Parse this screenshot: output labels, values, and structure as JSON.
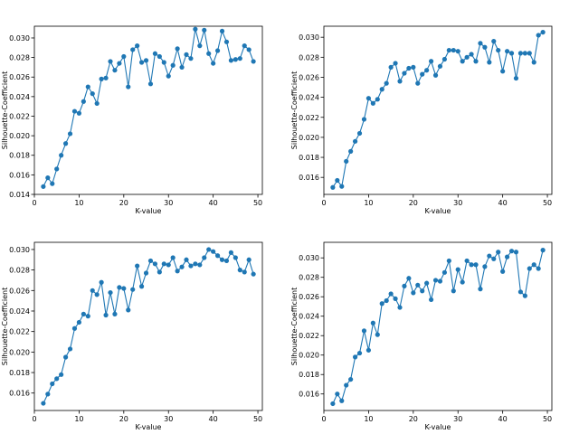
{
  "chart_data": [
    {
      "type": "line",
      "xlabel": "K-value",
      "ylabel": "Silhouette-Coefficient",
      "xlim": [
        0,
        51
      ],
      "ylim": [
        0.014,
        0.0312
      ],
      "xticks": [
        0,
        10,
        20,
        30,
        40,
        50
      ],
      "yticks": [
        0.014,
        0.016,
        0.018,
        0.02,
        0.022,
        0.024,
        0.026,
        0.028,
        0.03
      ],
      "color": "#1f77b4",
      "x": [
        2,
        3,
        4,
        5,
        6,
        7,
        8,
        9,
        10,
        11,
        12,
        13,
        14,
        15,
        16,
        17,
        18,
        19,
        20,
        21,
        22,
        23,
        24,
        25,
        26,
        27,
        28,
        29,
        30,
        31,
        32,
        33,
        34,
        35,
        36,
        37,
        38,
        39,
        40,
        41,
        42,
        43,
        44,
        45,
        46,
        47,
        48,
        49
      ],
      "y": [
        0.0148,
        0.0157,
        0.0151,
        0.0166,
        0.018,
        0.0192,
        0.0202,
        0.0225,
        0.0223,
        0.0235,
        0.025,
        0.0243,
        0.0233,
        0.0258,
        0.0259,
        0.0276,
        0.0267,
        0.0274,
        0.0281,
        0.025,
        0.0288,
        0.0292,
        0.0275,
        0.0277,
        0.0253,
        0.0284,
        0.0281,
        0.0275,
        0.0261,
        0.0272,
        0.0289,
        0.027,
        0.0283,
        0.0279,
        0.0309,
        0.0292,
        0.0308,
        0.0284,
        0.0274,
        0.0287,
        0.0307,
        0.0296,
        0.0277,
        0.0278,
        0.0279,
        0.0292,
        0.0288,
        0.0276
      ]
    },
    {
      "type": "line",
      "xlabel": "K-value",
      "ylabel": "Silhouette-Coefficient",
      "xlim": [
        0,
        51
      ],
      "ylim": [
        0.0143,
        0.0311
      ],
      "xticks": [
        0,
        10,
        20,
        30,
        40,
        50
      ],
      "yticks": [
        0.016,
        0.018,
        0.02,
        0.022,
        0.024,
        0.026,
        0.028,
        0.03
      ],
      "color": "#1f77b4",
      "x": [
        2,
        3,
        4,
        5,
        6,
        7,
        8,
        9,
        10,
        11,
        12,
        13,
        14,
        15,
        16,
        17,
        18,
        19,
        20,
        21,
        22,
        23,
        24,
        25,
        26,
        27,
        28,
        29,
        30,
        31,
        32,
        33,
        34,
        35,
        36,
        37,
        38,
        39,
        40,
        41,
        42,
        43,
        44,
        45,
        46,
        47,
        48,
        49
      ],
      "y": [
        0.015,
        0.0157,
        0.0151,
        0.0176,
        0.0186,
        0.0196,
        0.0204,
        0.0218,
        0.0239,
        0.0234,
        0.0238,
        0.0248,
        0.0254,
        0.027,
        0.0274,
        0.0256,
        0.0264,
        0.0269,
        0.027,
        0.0254,
        0.0263,
        0.0267,
        0.0276,
        0.0262,
        0.0271,
        0.0278,
        0.0287,
        0.0287,
        0.0286,
        0.0276,
        0.028,
        0.0283,
        0.0276,
        0.0294,
        0.029,
        0.0275,
        0.0296,
        0.0287,
        0.0266,
        0.0286,
        0.0284,
        0.0259,
        0.0284,
        0.0284,
        0.0284,
        0.0275,
        0.0302,
        0.0305
      ]
    },
    {
      "type": "line",
      "xlabel": "K-value",
      "ylabel": "Silhouette-Coefficient",
      "xlim": [
        0,
        51
      ],
      "ylim": [
        0.0143,
        0.0307
      ],
      "xticks": [
        0,
        10,
        20,
        30,
        40,
        50
      ],
      "yticks": [
        0.016,
        0.018,
        0.02,
        0.022,
        0.024,
        0.026,
        0.028,
        0.03
      ],
      "color": "#1f77b4",
      "x": [
        2,
        3,
        4,
        5,
        6,
        7,
        8,
        9,
        10,
        11,
        12,
        13,
        14,
        15,
        16,
        17,
        18,
        19,
        20,
        21,
        22,
        23,
        24,
        25,
        26,
        27,
        28,
        29,
        30,
        31,
        32,
        33,
        34,
        35,
        36,
        37,
        38,
        39,
        40,
        41,
        42,
        43,
        44,
        45,
        46,
        47,
        48,
        49
      ],
      "y": [
        0.015,
        0.0159,
        0.0169,
        0.0174,
        0.0178,
        0.0195,
        0.0203,
        0.0223,
        0.0229,
        0.0237,
        0.0235,
        0.026,
        0.0256,
        0.0268,
        0.0236,
        0.0258,
        0.0237,
        0.0263,
        0.0262,
        0.0241,
        0.0261,
        0.0284,
        0.0264,
        0.0277,
        0.0289,
        0.0286,
        0.0278,
        0.0286,
        0.0285,
        0.0292,
        0.0279,
        0.0283,
        0.029,
        0.0284,
        0.0286,
        0.0285,
        0.0292,
        0.03,
        0.0298,
        0.0294,
        0.029,
        0.0289,
        0.0297,
        0.0292,
        0.028,
        0.0278,
        0.029,
        0.0276
      ]
    },
    {
      "type": "line",
      "xlabel": "K-value",
      "ylabel": "Silhouette-Coefficient",
      "xlim": [
        0,
        51
      ],
      "ylim": [
        0.0143,
        0.0316
      ],
      "xticks": [
        0,
        10,
        20,
        30,
        40,
        50
      ],
      "yticks": [
        0.016,
        0.018,
        0.02,
        0.022,
        0.024,
        0.026,
        0.028,
        0.03
      ],
      "color": "#1f77b4",
      "x": [
        2,
        3,
        4,
        5,
        6,
        7,
        8,
        9,
        10,
        11,
        12,
        13,
        14,
        15,
        16,
        17,
        18,
        19,
        20,
        21,
        22,
        23,
        24,
        25,
        26,
        27,
        28,
        29,
        30,
        31,
        32,
        33,
        34,
        35,
        36,
        37,
        38,
        39,
        40,
        41,
        42,
        43,
        44,
        45,
        46,
        47,
        48,
        49
      ],
      "y": [
        0.015,
        0.016,
        0.0153,
        0.0169,
        0.0175,
        0.0198,
        0.0202,
        0.0225,
        0.0205,
        0.0233,
        0.0221,
        0.0253,
        0.0256,
        0.0263,
        0.0258,
        0.0249,
        0.0271,
        0.0279,
        0.0264,
        0.0272,
        0.0266,
        0.0274,
        0.0257,
        0.0277,
        0.0276,
        0.0285,
        0.0297,
        0.0266,
        0.0288,
        0.0275,
        0.0297,
        0.0293,
        0.0293,
        0.0268,
        0.0291,
        0.0302,
        0.0299,
        0.0306,
        0.0286,
        0.0301,
        0.0307,
        0.0306,
        0.0265,
        0.0261,
        0.0289,
        0.0293,
        0.0289,
        0.0308
      ]
    }
  ]
}
